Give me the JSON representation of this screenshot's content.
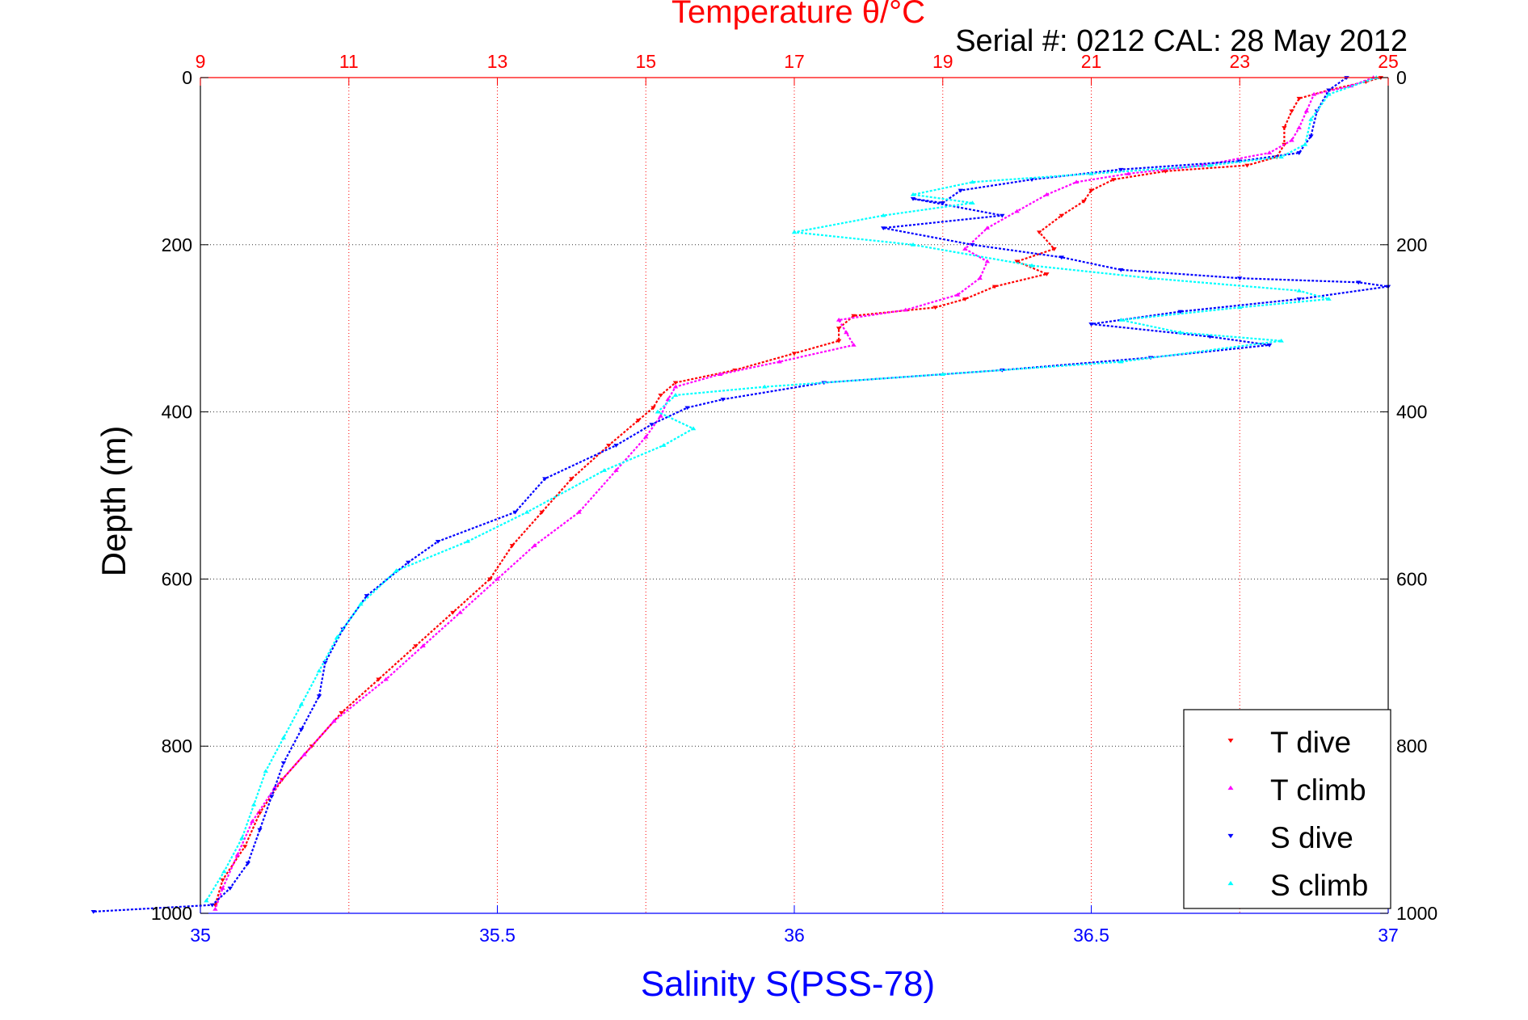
{
  "chart_data": {
    "type": "scatter",
    "title": "Temperature θ/°C",
    "subtitle": "Serial #: 0212  CAL: 28 May 2012",
    "ylabel": "Depth (m)",
    "xlabel_bottom": "Salinity S(PSS-78)",
    "ylim": [
      1000,
      0
    ],
    "yticks": [
      0,
      200,
      400,
      600,
      800,
      1000
    ],
    "x_top": {
      "label": "Temperature θ/°C",
      "range": [
        9,
        25
      ],
      "ticks": [
        9,
        11,
        13,
        15,
        17,
        19,
        21,
        23,
        25
      ],
      "color": "#ff0000"
    },
    "x_bottom": {
      "label": "Salinity S(PSS-78)",
      "range": [
        35,
        37
      ],
      "ticks": [
        "35",
        "35.5",
        "36",
        "36.5",
        "37"
      ],
      "tick_values": [
        35,
        35.5,
        36,
        36.5,
        37
      ],
      "color": "#0000ff"
    },
    "grid": true,
    "legend_position": "bottom-right",
    "series": [
      {
        "name": "T dive",
        "axis": "top",
        "color": "#ff0000",
        "marker": "triangle-down",
        "points": [
          [
            24.9,
            0
          ],
          [
            24.7,
            5
          ],
          [
            24.2,
            15
          ],
          [
            23.8,
            25
          ],
          [
            23.7,
            40
          ],
          [
            23.6,
            60
          ],
          [
            23.6,
            80
          ],
          [
            23.5,
            95
          ],
          [
            23.1,
            105
          ],
          [
            22.0,
            112
          ],
          [
            21.3,
            122
          ],
          [
            21.0,
            135
          ],
          [
            20.9,
            148
          ],
          [
            20.6,
            165
          ],
          [
            20.3,
            185
          ],
          [
            20.5,
            205
          ],
          [
            20.0,
            220
          ],
          [
            20.4,
            235
          ],
          [
            19.7,
            250
          ],
          [
            19.3,
            265
          ],
          [
            18.9,
            275
          ],
          [
            17.8,
            285
          ],
          [
            17.6,
            300
          ],
          [
            17.6,
            315
          ],
          [
            17.0,
            330
          ],
          [
            16.2,
            350
          ],
          [
            15.4,
            365
          ],
          [
            15.2,
            380
          ],
          [
            15.1,
            395
          ],
          [
            14.9,
            410
          ],
          [
            14.5,
            440
          ],
          [
            14.0,
            480
          ],
          [
            13.6,
            520
          ],
          [
            13.2,
            560
          ],
          [
            12.9,
            600
          ],
          [
            12.4,
            640
          ],
          [
            11.9,
            680
          ],
          [
            11.4,
            720
          ],
          [
            10.9,
            760
          ],
          [
            10.5,
            800
          ],
          [
            10.1,
            840
          ],
          [
            9.8,
            880
          ],
          [
            9.6,
            920
          ],
          [
            9.3,
            960
          ],
          [
            9.2,
            990
          ]
        ]
      },
      {
        "name": "T climb",
        "axis": "top",
        "color": "#ff00ff",
        "marker": "triangle-up",
        "points": [
          [
            24.8,
            0
          ],
          [
            24.5,
            10
          ],
          [
            24.0,
            20
          ],
          [
            23.9,
            40
          ],
          [
            23.8,
            60
          ],
          [
            23.7,
            75
          ],
          [
            23.4,
            90
          ],
          [
            22.5,
            105
          ],
          [
            21.5,
            115
          ],
          [
            20.8,
            125
          ],
          [
            20.4,
            140
          ],
          [
            20.0,
            160
          ],
          [
            19.6,
            180
          ],
          [
            19.3,
            205
          ],
          [
            19.6,
            220
          ],
          [
            19.5,
            240
          ],
          [
            19.2,
            260
          ],
          [
            18.5,
            278
          ],
          [
            17.6,
            290
          ],
          [
            17.7,
            305
          ],
          [
            17.8,
            320
          ],
          [
            16.8,
            340
          ],
          [
            16.0,
            355
          ],
          [
            15.4,
            370
          ],
          [
            15.3,
            385
          ],
          [
            15.2,
            405
          ],
          [
            15.0,
            430
          ],
          [
            14.6,
            470
          ],
          [
            14.1,
            520
          ],
          [
            13.5,
            560
          ],
          [
            13.0,
            600
          ],
          [
            12.5,
            640
          ],
          [
            12.0,
            680
          ],
          [
            11.5,
            720
          ],
          [
            10.8,
            770
          ],
          [
            10.4,
            810
          ],
          [
            10.0,
            850
          ],
          [
            9.7,
            890
          ],
          [
            9.5,
            930
          ],
          [
            9.3,
            970
          ],
          [
            9.2,
            995
          ]
        ]
      },
      {
        "name": "S dive",
        "axis": "bottom",
        "color": "#0000ff",
        "marker": "triangle-down",
        "points": [
          [
            36.93,
            0
          ],
          [
            36.9,
            15
          ],
          [
            36.88,
            40
          ],
          [
            36.87,
            70
          ],
          [
            36.85,
            90
          ],
          [
            36.75,
            100
          ],
          [
            36.55,
            110
          ],
          [
            36.4,
            122
          ],
          [
            36.28,
            135
          ],
          [
            36.25,
            150
          ],
          [
            36.2,
            145
          ],
          [
            36.35,
            165
          ],
          [
            36.15,
            180
          ],
          [
            36.3,
            200
          ],
          [
            36.45,
            215
          ],
          [
            36.55,
            230
          ],
          [
            36.75,
            240
          ],
          [
            36.95,
            245
          ],
          [
            37.0,
            250
          ],
          [
            36.85,
            265
          ],
          [
            36.65,
            280
          ],
          [
            36.5,
            295
          ],
          [
            36.7,
            310
          ],
          [
            36.8,
            320
          ],
          [
            36.6,
            335
          ],
          [
            36.35,
            350
          ],
          [
            36.05,
            365
          ],
          [
            35.88,
            385
          ],
          [
            35.82,
            395
          ],
          [
            35.76,
            415
          ],
          [
            35.7,
            440
          ],
          [
            35.58,
            480
          ],
          [
            35.53,
            520
          ],
          [
            35.4,
            555
          ],
          [
            35.35,
            580
          ],
          [
            35.28,
            620
          ],
          [
            35.24,
            660
          ],
          [
            35.21,
            700
          ],
          [
            35.2,
            740
          ],
          [
            35.17,
            780
          ],
          [
            35.14,
            820
          ],
          [
            35.12,
            860
          ],
          [
            35.1,
            900
          ],
          [
            35.08,
            940
          ],
          [
            35.05,
            970
          ],
          [
            35.02,
            990
          ],
          [
            34.82,
            998
          ]
        ]
      },
      {
        "name": "S climb",
        "axis": "bottom",
        "color": "#00ffff",
        "marker": "triangle-up",
        "points": [
          [
            36.98,
            0
          ],
          [
            36.9,
            20
          ],
          [
            36.87,
            50
          ],
          [
            36.86,
            80
          ],
          [
            36.82,
            95
          ],
          [
            36.7,
            105
          ],
          [
            36.5,
            115
          ],
          [
            36.3,
            125
          ],
          [
            36.2,
            140
          ],
          [
            36.3,
            150
          ],
          [
            36.15,
            165
          ],
          [
            36.0,
            185
          ],
          [
            36.2,
            200
          ],
          [
            36.4,
            225
          ],
          [
            36.6,
            240
          ],
          [
            36.85,
            255
          ],
          [
            36.9,
            265
          ],
          [
            36.75,
            275
          ],
          [
            36.55,
            290
          ],
          [
            36.65,
            305
          ],
          [
            36.82,
            315
          ],
          [
            36.55,
            340
          ],
          [
            36.25,
            355
          ],
          [
            35.95,
            370
          ],
          [
            35.8,
            380
          ],
          [
            35.77,
            400
          ],
          [
            35.83,
            420
          ],
          [
            35.78,
            440
          ],
          [
            35.68,
            470
          ],
          [
            35.55,
            520
          ],
          [
            35.45,
            555
          ],
          [
            35.33,
            590
          ],
          [
            35.27,
            630
          ],
          [
            35.23,
            670
          ],
          [
            35.2,
            710
          ],
          [
            35.17,
            750
          ],
          [
            35.14,
            790
          ],
          [
            35.11,
            830
          ],
          [
            35.09,
            870
          ],
          [
            35.07,
            910
          ],
          [
            35.04,
            950
          ],
          [
            35.01,
            985
          ]
        ]
      }
    ]
  }
}
